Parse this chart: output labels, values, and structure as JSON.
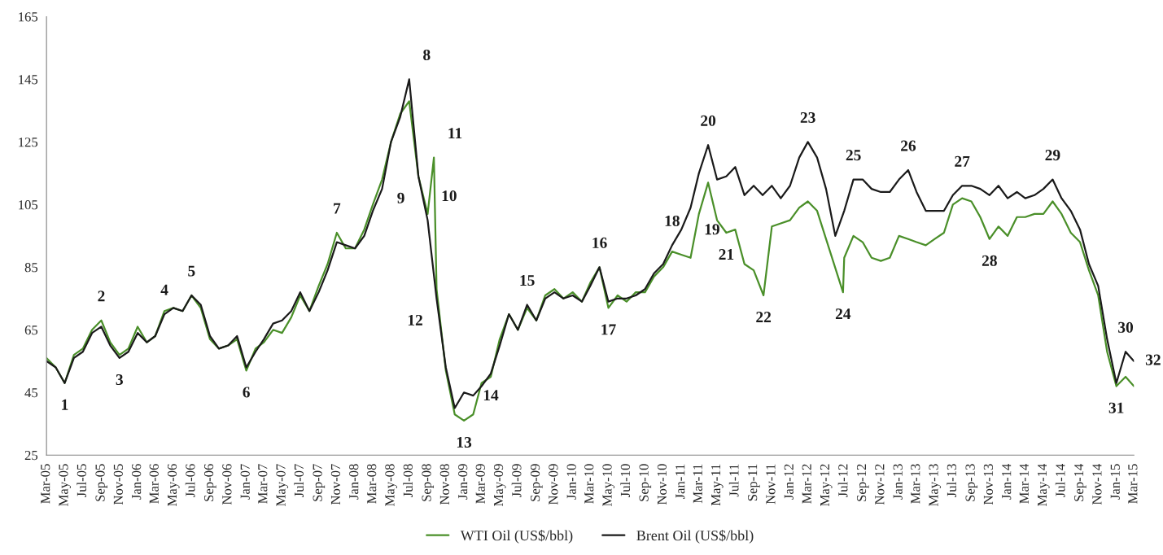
{
  "chart_data": {
    "type": "line",
    "xlim": [
      "2005-03-01",
      "2015-03-01"
    ],
    "xticks": [
      {
        "value": "2005-03-01",
        "label": "Mar-05"
      },
      {
        "value": "2005-05-01",
        "label": "May-05"
      },
      {
        "value": "2005-07-01",
        "label": "Jul-05"
      },
      {
        "value": "2005-09-01",
        "label": "Sep-05"
      },
      {
        "value": "2005-11-01",
        "label": "Nov-05"
      },
      {
        "value": "2006-01-01",
        "label": "Jan-06"
      },
      {
        "value": "2006-03-01",
        "label": "Mar-06"
      },
      {
        "value": "2006-05-01",
        "label": "May-06"
      },
      {
        "value": "2006-07-01",
        "label": "Jul-06"
      },
      {
        "value": "2006-09-01",
        "label": "Sep-06"
      },
      {
        "value": "2006-11-01",
        "label": "Nov-06"
      },
      {
        "value": "2007-01-01",
        "label": "Jan-07"
      },
      {
        "value": "2007-03-01",
        "label": "Mar-07"
      },
      {
        "value": "2007-05-01",
        "label": "May-07"
      },
      {
        "value": "2007-07-01",
        "label": "Jul-07"
      },
      {
        "value": "2007-09-01",
        "label": "Sep-07"
      },
      {
        "value": "2007-11-01",
        "label": "Nov-07"
      },
      {
        "value": "2008-01-01",
        "label": "Jan-08"
      },
      {
        "value": "2008-03-01",
        "label": "Mar-08"
      },
      {
        "value": "2008-05-01",
        "label": "May-08"
      },
      {
        "value": "2008-07-01",
        "label": "Jul-08"
      },
      {
        "value": "2008-09-01",
        "label": "Sep-08"
      },
      {
        "value": "2008-11-01",
        "label": "Nov-08"
      },
      {
        "value": "2009-01-01",
        "label": "Jan-09"
      },
      {
        "value": "2009-03-01",
        "label": "Mar-09"
      },
      {
        "value": "2009-05-01",
        "label": "May-09"
      },
      {
        "value": "2009-07-01",
        "label": "Jul-09"
      },
      {
        "value": "2009-09-01",
        "label": "Sep-09"
      },
      {
        "value": "2009-11-01",
        "label": "Nov-09"
      },
      {
        "value": "2010-01-01",
        "label": "Jan-10"
      },
      {
        "value": "2010-03-01",
        "label": "Mar-10"
      },
      {
        "value": "2010-05-01",
        "label": "May-10"
      },
      {
        "value": "2010-07-01",
        "label": "Jul-10"
      },
      {
        "value": "2010-09-01",
        "label": "Sep-10"
      },
      {
        "value": "2010-11-01",
        "label": "Nov-10"
      },
      {
        "value": "2011-01-01",
        "label": "Jan-11"
      },
      {
        "value": "2011-03-01",
        "label": "Mar-11"
      },
      {
        "value": "2011-05-01",
        "label": "May-11"
      },
      {
        "value": "2011-07-01",
        "label": "Jul-11"
      },
      {
        "value": "2011-09-01",
        "label": "Sep-11"
      },
      {
        "value": "2011-11-01",
        "label": "Nov-11"
      },
      {
        "value": "2012-01-01",
        "label": "Jan-12"
      },
      {
        "value": "2012-03-01",
        "label": "Mar-12"
      },
      {
        "value": "2012-05-01",
        "label": "May-12"
      },
      {
        "value": "2012-07-01",
        "label": "Jul-12"
      },
      {
        "value": "2012-09-01",
        "label": "Sep-12"
      },
      {
        "value": "2012-11-01",
        "label": "Nov-12"
      },
      {
        "value": "2013-01-01",
        "label": "Jan-13"
      },
      {
        "value": "2013-03-01",
        "label": "Mar-13"
      },
      {
        "value": "2013-05-01",
        "label": "May-13"
      },
      {
        "value": "2013-07-01",
        "label": "Jul-13"
      },
      {
        "value": "2013-09-01",
        "label": "Sep-13"
      },
      {
        "value": "2013-11-01",
        "label": "Nov-13"
      },
      {
        "value": "2014-01-01",
        "label": "Jan-14"
      },
      {
        "value": "2014-03-01",
        "label": "Mar-14"
      },
      {
        "value": "2014-05-01",
        "label": "May-14"
      },
      {
        "value": "2014-07-01",
        "label": "Jul-14"
      },
      {
        "value": "2014-09-01",
        "label": "Sep-14"
      },
      {
        "value": "2014-11-01",
        "label": "Nov-14"
      },
      {
        "value": "2015-01-01",
        "label": "Jan-15"
      },
      {
        "value": "2015-03-01",
        "label": "Mar-15"
      }
    ],
    "ylim": [
      25,
      165
    ],
    "yticks": [
      25,
      45,
      65,
      85,
      105,
      125,
      145,
      165
    ],
    "legend": "bottom",
    "series": [
      {
        "name": "WTI Oil (US$/bbl)",
        "color": "#4a8f29",
        "x": [
          "2005-03-01",
          "2005-04-01",
          "2005-05-01",
          "2005-06-01",
          "2005-07-01",
          "2005-08-01",
          "2005-09-01",
          "2005-10-01",
          "2005-11-01",
          "2005-12-01",
          "2006-01-01",
          "2006-02-01",
          "2006-03-01",
          "2006-04-01",
          "2006-05-01",
          "2006-06-01",
          "2006-07-01",
          "2006-08-01",
          "2006-09-01",
          "2006-10-01",
          "2006-11-01",
          "2006-12-01",
          "2007-01-01",
          "2007-02-01",
          "2007-03-01",
          "2007-04-01",
          "2007-05-01",
          "2007-06-01",
          "2007-07-01",
          "2007-08-01",
          "2007-09-01",
          "2007-10-01",
          "2007-11-01",
          "2007-12-01",
          "2008-01-01",
          "2008-02-01",
          "2008-03-01",
          "2008-04-01",
          "2008-05-01",
          "2008-06-01",
          "2008-07-01",
          "2008-08-01",
          "2008-09-01",
          "2008-09-22",
          "2008-10-01",
          "2008-11-01",
          "2008-12-01",
          "2009-01-01",
          "2009-02-01",
          "2009-03-01",
          "2009-04-01",
          "2009-05-01",
          "2009-06-01",
          "2009-07-01",
          "2009-08-01",
          "2009-09-01",
          "2009-10-01",
          "2009-11-01",
          "2009-12-01",
          "2010-01-01",
          "2010-02-01",
          "2010-03-01",
          "2010-04-01",
          "2010-05-01",
          "2010-06-01",
          "2010-07-01",
          "2010-08-01",
          "2010-09-01",
          "2010-10-01",
          "2010-11-01",
          "2010-12-01",
          "2011-01-01",
          "2011-02-01",
          "2011-03-01",
          "2011-04-01",
          "2011-05-01",
          "2011-06-01",
          "2011-07-01",
          "2011-08-01",
          "2011-09-01",
          "2011-10-04",
          "2011-11-01",
          "2011-12-01",
          "2012-01-01",
          "2012-02-01",
          "2012-03-01",
          "2012-04-01",
          "2012-05-01",
          "2012-06-27",
          "2012-07-01",
          "2012-08-01",
          "2012-09-01",
          "2012-10-01",
          "2012-11-01",
          "2012-12-01",
          "2013-01-01",
          "2013-02-01",
          "2013-03-01",
          "2013-04-01",
          "2013-05-01",
          "2013-06-01",
          "2013-07-01",
          "2013-08-01",
          "2013-09-01",
          "2013-10-01",
          "2013-11-01",
          "2013-12-01",
          "2014-01-01",
          "2014-02-01",
          "2014-03-01",
          "2014-04-01",
          "2014-05-01",
          "2014-06-01",
          "2014-07-01",
          "2014-08-01",
          "2014-09-01",
          "2014-10-01",
          "2014-11-01",
          "2014-12-01",
          "2015-01-01",
          "2015-02-01",
          "2015-03-01"
        ],
        "values": [
          56,
          53,
          48,
          57,
          59,
          65,
          68,
          61,
          57,
          59,
          66,
          61,
          63,
          71,
          72,
          71,
          76,
          72,
          62,
          59,
          60,
          62,
          52,
          59,
          61,
          65,
          64,
          69,
          76,
          71,
          79,
          86,
          96,
          91,
          91,
          97,
          105,
          113,
          125,
          134,
          138,
          114,
          102,
          120,
          78,
          52,
          38,
          36,
          38,
          48,
          50,
          62,
          70,
          65,
          72,
          68,
          76,
          78,
          75,
          77,
          74,
          80,
          85,
          72,
          76,
          74,
          77,
          77,
          82,
          85,
          90,
          89,
          88,
          102,
          112,
          100,
          96,
          97,
          86,
          84,
          76,
          98,
          99,
          100,
          104,
          106,
          103,
          94,
          77,
          88,
          95,
          93,
          88,
          87,
          88,
          95,
          94,
          93,
          92,
          94,
          96,
          105,
          107,
          106,
          101,
          94,
          98,
          95,
          101,
          101,
          102,
          102,
          106,
          102,
          96,
          93,
          84,
          76,
          58,
          47,
          50,
          47
        ]
      },
      {
        "name": "Brent Oil (US$/bbl)",
        "color": "#1a1a1a",
        "x": [
          "2005-03-01",
          "2005-04-01",
          "2005-05-01",
          "2005-06-01",
          "2005-07-01",
          "2005-08-01",
          "2005-09-01",
          "2005-10-01",
          "2005-11-01",
          "2005-12-01",
          "2006-01-01",
          "2006-02-01",
          "2006-03-01",
          "2006-04-01",
          "2006-05-01",
          "2006-06-01",
          "2006-07-01",
          "2006-08-01",
          "2006-09-01",
          "2006-10-01",
          "2006-11-01",
          "2006-12-01",
          "2007-01-01",
          "2007-02-01",
          "2007-03-01",
          "2007-04-01",
          "2007-05-01",
          "2007-06-01",
          "2007-07-01",
          "2007-08-01",
          "2007-09-01",
          "2007-10-01",
          "2007-11-01",
          "2007-12-01",
          "2008-01-01",
          "2008-02-01",
          "2008-03-01",
          "2008-04-01",
          "2008-05-01",
          "2008-06-01",
          "2008-07-01",
          "2008-08-01",
          "2008-09-01",
          "2008-10-01",
          "2008-11-01",
          "2008-12-01",
          "2009-01-01",
          "2009-02-01",
          "2009-03-01",
          "2009-04-01",
          "2009-05-01",
          "2009-06-01",
          "2009-07-01",
          "2009-08-01",
          "2009-09-01",
          "2009-10-01",
          "2009-11-01",
          "2009-12-01",
          "2010-01-01",
          "2010-02-01",
          "2010-03-01",
          "2010-04-01",
          "2010-05-01",
          "2010-06-01",
          "2010-07-01",
          "2010-08-01",
          "2010-09-01",
          "2010-10-01",
          "2010-11-01",
          "2010-12-01",
          "2011-01-01",
          "2011-02-01",
          "2011-03-01",
          "2011-04-01",
          "2011-05-01",
          "2011-06-01",
          "2011-07-01",
          "2011-08-01",
          "2011-09-01",
          "2011-10-01",
          "2011-11-01",
          "2011-12-01",
          "2012-01-01",
          "2012-02-01",
          "2012-03-01",
          "2012-04-01",
          "2012-05-01",
          "2012-06-01",
          "2012-07-01",
          "2012-08-01",
          "2012-09-01",
          "2012-10-01",
          "2012-11-01",
          "2012-12-01",
          "2013-01-01",
          "2013-02-01",
          "2013-03-01",
          "2013-04-01",
          "2013-05-01",
          "2013-06-01",
          "2013-07-01",
          "2013-08-01",
          "2013-09-01",
          "2013-10-01",
          "2013-11-01",
          "2013-12-01",
          "2014-01-01",
          "2014-02-01",
          "2014-03-01",
          "2014-04-01",
          "2014-05-01",
          "2014-06-01",
          "2014-07-01",
          "2014-08-01",
          "2014-09-01",
          "2014-10-01",
          "2014-11-01",
          "2014-12-01",
          "2015-01-01",
          "2015-02-01",
          "2015-03-01"
        ],
        "values": [
          55,
          53,
          48,
          56,
          58,
          64,
          66,
          60,
          56,
          58,
          64,
          61,
          63,
          70,
          72,
          71,
          76,
          73,
          63,
          59,
          60,
          63,
          53,
          58,
          62,
          67,
          68,
          71,
          77,
          71,
          77,
          84,
          93,
          92,
          91,
          95,
          103,
          110,
          125,
          133,
          145,
          114,
          100,
          75,
          53,
          40,
          45,
          44,
          47,
          51,
          60,
          70,
          65,
          73,
          68,
          75,
          77,
          75,
          76,
          74,
          79,
          85,
          74,
          75,
          75,
          76,
          78,
          83,
          86,
          92,
          97,
          104,
          115,
          124,
          113,
          114,
          117,
          108,
          111,
          108,
          111,
          107,
          111,
          120,
          125,
          120,
          110,
          95,
          103,
          113,
          113,
          110,
          109,
          109,
          113,
          116,
          109,
          103,
          103,
          103,
          108,
          111,
          111,
          110,
          108,
          111,
          107,
          109,
          107,
          108,
          110,
          113,
          107,
          103,
          97,
          86,
          79,
          62,
          48,
          58,
          55
        ]
      }
    ],
    "annotations": [
      {
        "text": "1",
        "x": "2005-05-01",
        "y": 48
      },
      {
        "text": "2",
        "x": "2005-09-01",
        "y": 68
      },
      {
        "text": "3",
        "x": "2005-11-01",
        "y": 56
      },
      {
        "text": "4",
        "x": "2006-04-01",
        "y": 70
      },
      {
        "text": "5",
        "x": "2006-07-01",
        "y": 76
      },
      {
        "text": "6",
        "x": "2007-01-01",
        "y": 52
      },
      {
        "text": "7",
        "x": "2007-11-01",
        "y": 96
      },
      {
        "text": "8",
        "x": "2008-07-01",
        "y": 145
      },
      {
        "text": "9",
        "x": "2008-08-01",
        "y": 114
      },
      {
        "text": "10",
        "x": "2008-09-01",
        "y": 100
      },
      {
        "text": "11",
        "x": "2008-09-22",
        "y": 120
      },
      {
        "text": "12",
        "x": "2008-10-01",
        "y": 75
      },
      {
        "text": "13",
        "x": "2009-01-01",
        "y": 36
      },
      {
        "text": "14",
        "x": "2009-04-01",
        "y": 51
      },
      {
        "text": "15",
        "x": "2009-08-01",
        "y": 73
      },
      {
        "text": "16",
        "x": "2010-04-01",
        "y": 85
      },
      {
        "text": "17",
        "x": "2010-05-01",
        "y": 72
      },
      {
        "text": "18",
        "x": "2010-12-01",
        "y": 92
      },
      {
        "text": "19",
        "x": "2011-02-01",
        "y": 104
      },
      {
        "text": "20",
        "x": "2011-04-01",
        "y": 124
      },
      {
        "text": "21",
        "x": "2011-06-01",
        "y": 96
      },
      {
        "text": "22",
        "x": "2011-10-04",
        "y": 76
      },
      {
        "text": "23",
        "x": "2012-03-01",
        "y": 125
      },
      {
        "text": "24",
        "x": "2012-06-27",
        "y": 77
      },
      {
        "text": "25",
        "x": "2012-08-01",
        "y": 113
      },
      {
        "text": "26",
        "x": "2013-02-01",
        "y": 116
      },
      {
        "text": "27",
        "x": "2013-08-01",
        "y": 111
      },
      {
        "text": "28",
        "x": "2013-11-01",
        "y": 94
      },
      {
        "text": "29",
        "x": "2014-06-01",
        "y": 113
      },
      {
        "text": "30",
        "x": "2015-02-01",
        "y": 58
      },
      {
        "text": "31",
        "x": "2015-01-01",
        "y": 47
      },
      {
        "text": "32",
        "x": "2015-03-01",
        "y": 55
      }
    ]
  }
}
